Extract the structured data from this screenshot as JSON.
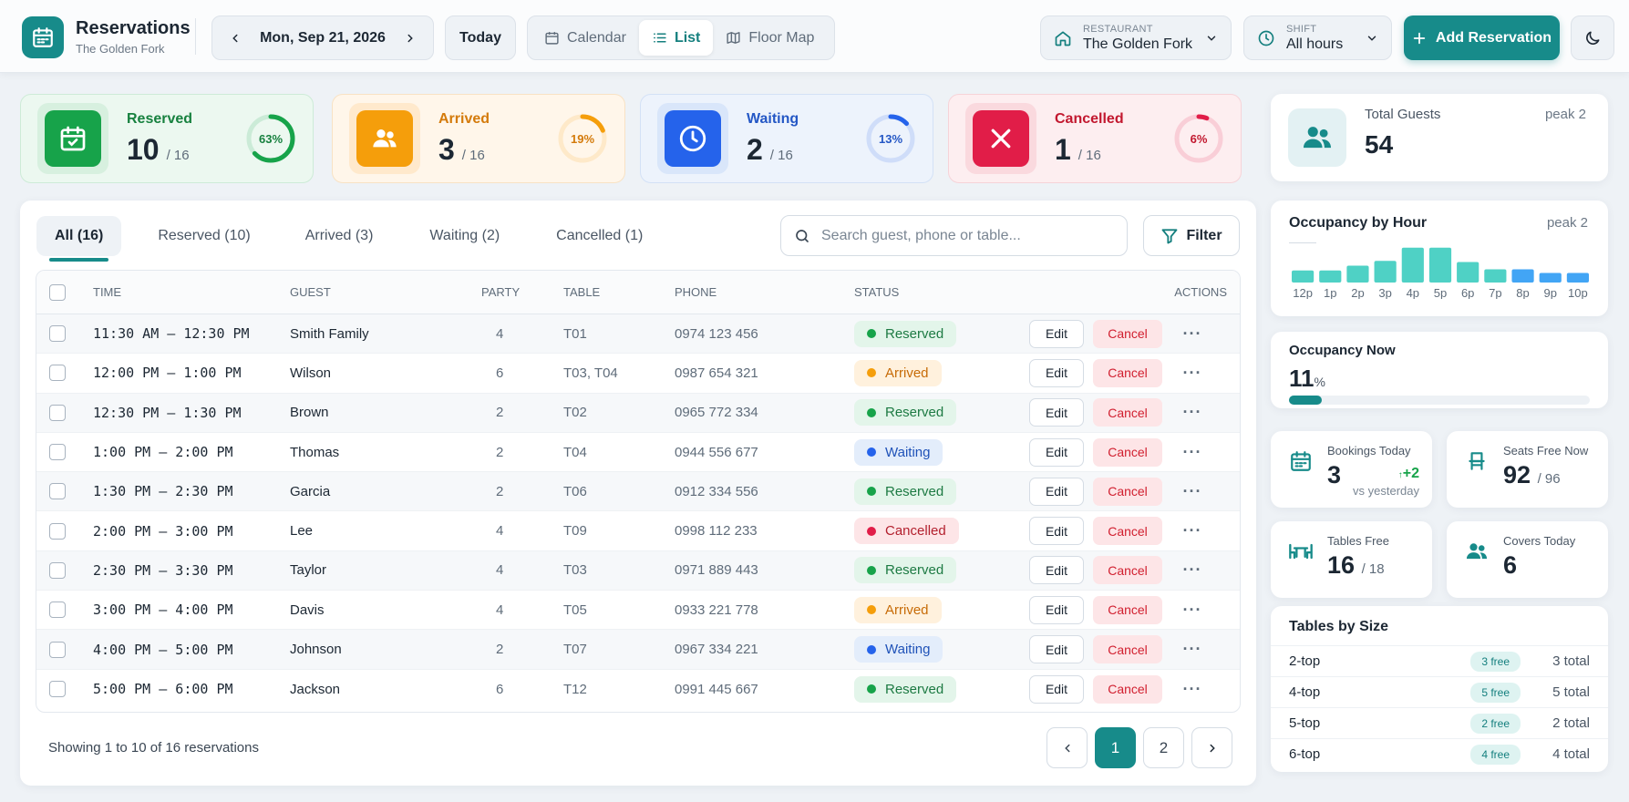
{
  "app": {
    "title": "Reservations",
    "subtitle": "The Golden Fork"
  },
  "date": {
    "label": "Mon, Sep 21, 2026",
    "today_label": "Today"
  },
  "views": [
    {
      "label": "Calendar"
    },
    {
      "label": "List",
      "active": true
    },
    {
      "label": "Floor Map"
    }
  ],
  "restaurant": {
    "label": "RESTAURANT",
    "value": "The Golden Fork"
  },
  "shift": {
    "label": "SHIFT",
    "value": "All hours"
  },
  "add_button": "Add Reservation",
  "stats": [
    {
      "name": "Reserved",
      "value": "10",
      "total": "/ 16",
      "pct": "63%",
      "fraction": 0.63,
      "color": "#17a34a"
    },
    {
      "name": "Arrived",
      "value": "3",
      "total": "/ 16",
      "pct": "19%",
      "fraction": 0.19,
      "color": "#f59e0b"
    },
    {
      "name": "Waiting",
      "value": "2",
      "total": "/ 16",
      "pct": "13%",
      "fraction": 0.13,
      "color": "#2563eb"
    },
    {
      "name": "Cancelled",
      "value": "1",
      "total": "/ 16",
      "pct": "6%",
      "fraction": 0.06,
      "color": "#e11d48"
    }
  ],
  "tabs": [
    {
      "label": "All (16)",
      "active": true
    },
    {
      "label": "Reserved (10)"
    },
    {
      "label": "Arrived (3)"
    },
    {
      "label": "Waiting (2)"
    },
    {
      "label": "Cancelled (1)"
    }
  ],
  "search": {
    "placeholder": "Search guest, phone or table..."
  },
  "filter_label": "Filter",
  "columns": {
    "time": "TIME",
    "guest": "GUEST",
    "party": "PARTY",
    "table": "TABLE",
    "phone": "PHONE",
    "status": "STATUS",
    "actions": "ACTIONS"
  },
  "reservations": [
    {
      "time": "11:30 AM – 12:30 PM",
      "guest": "Smith Family",
      "party": "4",
      "table": "T01",
      "phone": "0974 123 456",
      "status": "Reserved"
    },
    {
      "time": "12:00 PM – 1:00 PM",
      "guest": "Wilson",
      "party": "6",
      "table": "T03, T04",
      "phone": "0987 654 321",
      "status": "Arrived"
    },
    {
      "time": "12:30 PM – 1:30 PM",
      "guest": "Brown",
      "party": "2",
      "table": "T02",
      "phone": "0965 772 334",
      "status": "Reserved"
    },
    {
      "time": "1:00 PM – 2:00 PM",
      "guest": "Thomas",
      "party": "2",
      "table": "T04",
      "phone": "0944 556 677",
      "status": "Waiting"
    },
    {
      "time": "1:30 PM – 2:30 PM",
      "guest": "Garcia",
      "party": "2",
      "table": "T06",
      "phone": "0912 334 556",
      "status": "Reserved"
    },
    {
      "time": "2:00 PM – 3:00 PM",
      "guest": "Lee",
      "party": "4",
      "table": "T09",
      "phone": "0998 112 233",
      "status": "Cancelled"
    },
    {
      "time": "2:30 PM – 3:30 PM",
      "guest": "Taylor",
      "party": "4",
      "table": "T03",
      "phone": "0971 889 443",
      "status": "Reserved"
    },
    {
      "time": "3:00 PM – 4:00 PM",
      "guest": "Davis",
      "party": "4",
      "table": "T05",
      "phone": "0933 221 778",
      "status": "Arrived"
    },
    {
      "time": "4:00 PM – 5:00 PM",
      "guest": "Johnson",
      "party": "2",
      "table": "T07",
      "phone": "0967 334 221",
      "status": "Waiting"
    },
    {
      "time": "5:00 PM – 6:00 PM",
      "guest": "Jackson",
      "party": "6",
      "table": "T12",
      "phone": "0991 445 667",
      "status": "Reserved"
    }
  ],
  "row_actions": {
    "edit": "Edit",
    "cancel": "Cancel"
  },
  "footer": {
    "showing": "Showing 1 to 10 of 16 reservations",
    "pages": [
      "1",
      "2"
    ],
    "current_page": "1"
  },
  "total_guests": {
    "label": "Total Guests",
    "value": "54",
    "peak": "peak 2"
  },
  "occupancy_by_hour": {
    "title": "Occupancy by Hour",
    "peak": "peak 2",
    "labels": [
      "12p",
      "1p",
      "2p",
      "3p",
      "4p",
      "5p",
      "6p",
      "7p",
      "8p",
      "9p",
      "10p"
    ],
    "levels": [
      0.2,
      0.2,
      0.28,
      0.36,
      0.58,
      0.58,
      0.34,
      0.22,
      0.22,
      0.16,
      0.16
    ],
    "colors": [
      "#4fd1c5",
      "#4fd1c5",
      "#4fd1c5",
      "#4fd1c5",
      "#4fd1c5",
      "#4fd1c5",
      "#4fd1c5",
      "#4fd1c5",
      "#42a5f5",
      "#42a5f5",
      "#42a5f5"
    ]
  },
  "occupancy_now": {
    "title": "Occupancy Now",
    "value": "11",
    "unit": "%",
    "fraction": 0.11
  },
  "bookings_today": {
    "label": "Bookings Today",
    "value": "3",
    "delta": "+2",
    "vs": "vs yesterday"
  },
  "seats_free": {
    "label": "Seats Free Now",
    "value": "92",
    "total": "/ 96"
  },
  "tables_free": {
    "label": "Tables Free",
    "value": "16",
    "total": "/ 18"
  },
  "covers_today": {
    "label": "Covers Today",
    "value": "6"
  },
  "tables_by_size": {
    "title": "Tables by Size",
    "rows": [
      {
        "name": "2-top",
        "free": "3 free",
        "total": "3 total"
      },
      {
        "name": "4-top",
        "free": "5 free",
        "total": "5 total"
      },
      {
        "name": "5-top",
        "free": "2 free",
        "total": "2 total"
      },
      {
        "name": "6-top",
        "free": "4 free",
        "total": "4 total"
      }
    ]
  }
}
